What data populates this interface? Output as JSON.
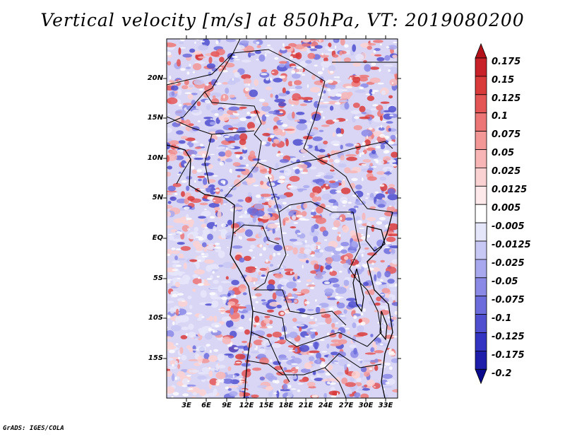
{
  "title": "Vertical velocity [m/s] at 850hPa, VT: 2019080200",
  "credit": "GrADS: IGES/COLA",
  "y_axis_labels": [
    "20N",
    "15N",
    "10N",
    "5N",
    "EQ",
    "5S",
    "10S",
    "15S"
  ],
  "x_axis_labels": [
    "3E",
    "6E",
    "9E",
    "12E",
    "15E",
    "18E",
    "21E",
    "24E",
    "27E",
    "30E",
    "33E"
  ],
  "colorbar": {
    "labels": [
      "0.175",
      "0.15",
      "0.125",
      "0.1",
      "0.075",
      "0.05",
      "0.025",
      "0.0125",
      "0.005",
      "-0.005",
      "-0.0125",
      "-0.025",
      "-0.05",
      "-0.075",
      "-0.1",
      "-0.125",
      "-0.175",
      "-0.2"
    ],
    "colors": [
      "#b3121a",
      "#c8212a",
      "#d93a3a",
      "#e45656",
      "#ec7676",
      "#f29696",
      "#f7b5b5",
      "#fbd2d2",
      "#fde9e9",
      "#ffffff",
      "#e6e6fa",
      "#c8c8f5",
      "#a8a8ee",
      "#8a8ae6",
      "#6c6cdc",
      "#4f4fd0",
      "#3434c2",
      "#1e1eaa",
      "#0a0a8c"
    ]
  }
}
